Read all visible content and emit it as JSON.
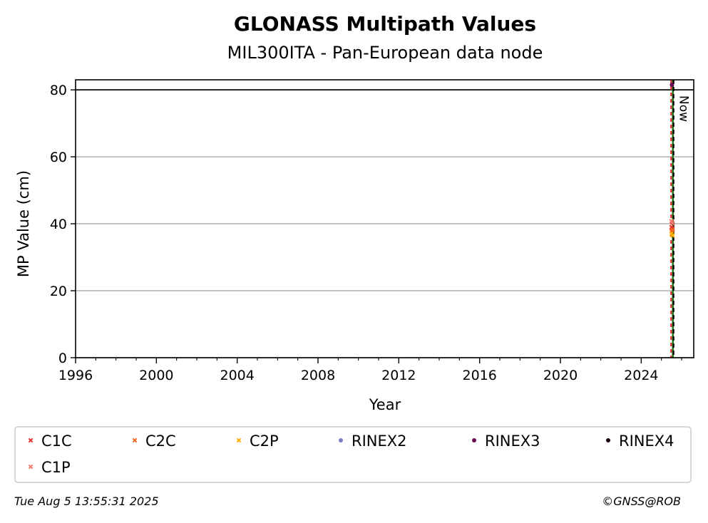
{
  "chart_data": {
    "type": "scatter",
    "title": "GLONASS Multipath Values",
    "subtitle": "MIL300ITA - Pan-European data node",
    "xlabel": "Year",
    "ylabel": "MP Value (cm)",
    "xlim": [
      1996,
      2026.6
    ],
    "ylim": [
      0,
      83
    ],
    "xticks": [
      "1996",
      "2000",
      "2004",
      "2008",
      "2012",
      "2016",
      "2020",
      "2024"
    ],
    "yticks": [
      "0",
      "20",
      "40",
      "60",
      "80"
    ],
    "grid": "horizontal",
    "legend_position": "bottom",
    "threshold_line": 80,
    "now_label": "Now",
    "now_year": 2025.6,
    "start_year": 2025.48,
    "series": [
      {
        "name": "C1C",
        "marker": "x",
        "color": "#e8312a",
        "points": [
          [
            2025.5,
            39.0
          ],
          [
            2025.55,
            38.5
          ]
        ]
      },
      {
        "name": "C2C",
        "marker": "x",
        "color": "#f26522",
        "points": [
          [
            2025.5,
            37.8
          ],
          [
            2025.55,
            38.2
          ]
        ]
      },
      {
        "name": "C2P",
        "marker": "x",
        "color": "#ffae00",
        "points": [
          [
            2025.5,
            37.0
          ],
          [
            2025.55,
            36.5
          ]
        ]
      },
      {
        "name": "RINEX2",
        "marker": "o",
        "color": "#7b7bc4",
        "points": []
      },
      {
        "name": "RINEX3",
        "marker": "o",
        "color": "#6a0a55",
        "points": [
          [
            2025.52,
            81.5
          ]
        ]
      },
      {
        "name": "RINEX4",
        "marker": "o",
        "color": "#1a0010",
        "points": []
      },
      {
        "name": "C1P",
        "marker": "x",
        "color": "#f47a6b",
        "points": [
          [
            2025.5,
            40.8
          ],
          [
            2025.55,
            40.2
          ]
        ]
      }
    ]
  },
  "footer": {
    "timestamp": "Tue Aug  5 13:55:31 2025",
    "credit": "©GNSS@ROB"
  }
}
